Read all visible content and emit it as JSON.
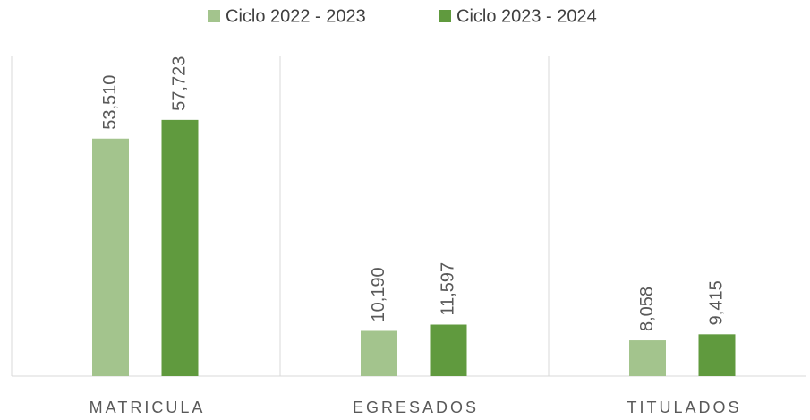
{
  "chart_data": {
    "type": "bar",
    "categories": [
      "MATRICULA",
      "EGRESADOS",
      "TITULADOS"
    ],
    "series": [
      {
        "name": "Ciclo 2022 - 2023",
        "color": "#a3c48d",
        "values": [
          53510,
          10190,
          8058
        ],
        "value_labels": [
          "53,510",
          "10,190",
          "8,058"
        ]
      },
      {
        "name": "Ciclo 2023 - 2024",
        "color": "#609a3e",
        "values": [
          57723,
          11597,
          9415
        ],
        "value_labels": [
          "57,723",
          "11,597",
          "9,415"
        ]
      }
    ],
    "ylim": [
      0,
      70000
    ],
    "legend": "top"
  }
}
